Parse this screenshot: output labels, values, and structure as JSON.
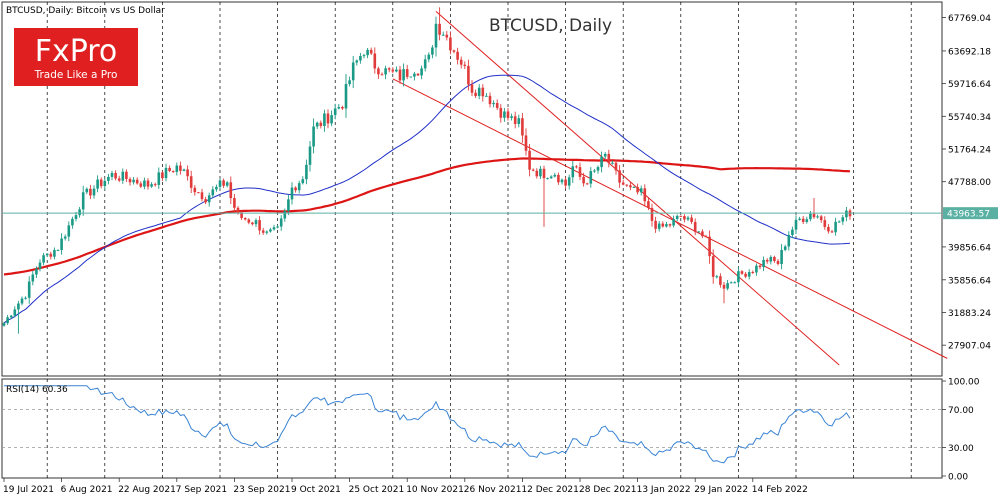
{
  "header": {
    "symbol_label": "BTCUSD, Daily:  Bitcoin vs US Dollar",
    "watermark": "BTCUSD, Daily"
  },
  "logo": {
    "brand": "FxPro",
    "tagline": "Trade Like a Pro",
    "color": "#e02020"
  },
  "colors": {
    "bull": "#1a9a86",
    "bear": "#e03a3a",
    "ma_fast": "#2030c8",
    "ma_slow": "#dd1515",
    "channel": "#e02020",
    "rsi": "#3a84d4",
    "price_line": "#5ab1a3",
    "price_badge": "#5ab1a3"
  },
  "chart_data": [
    {
      "type": "candlestick",
      "title": "BTCUSD, Daily",
      "ylim": [
        24400,
        69400
      ],
      "y_ticks": [
        "67769.04",
        "63692.18",
        "59716.64",
        "55740.34",
        "51764.24",
        "47788.00",
        "43963.57",
        "39856.64",
        "35856.64",
        "31883.24",
        "27907.04"
      ],
      "x_ticks": [
        "19 Jul 2021",
        "6 Aug 2021",
        "22 Aug 2021",
        "7 Sep 2021",
        "23 Sep 2021",
        "9 Oct 2021",
        "25 Oct 2021",
        "10 Nov 2021",
        "26 Nov 2021",
        "12 Dec 2021",
        "28 Dec 2021",
        "13 Jan 2022",
        "29 Jan 2022",
        "14 Feb 2022"
      ],
      "current_price": "43963.57",
      "close_anchors": [
        [
          0,
          30600
        ],
        [
          3,
          32500
        ],
        [
          6,
          34100
        ],
        [
          8,
          36400
        ],
        [
          10,
          38200
        ],
        [
          15,
          39800
        ],
        [
          18,
          42400
        ],
        [
          22,
          45900
        ],
        [
          26,
          47400
        ],
        [
          30,
          48600
        ],
        [
          35,
          48100
        ],
        [
          40,
          47400
        ],
        [
          45,
          48900
        ],
        [
          48,
          49600
        ],
        [
          50,
          48900
        ],
        [
          53,
          46900
        ],
        [
          56,
          45900
        ],
        [
          60,
          47300
        ],
        [
          62,
          47800
        ],
        [
          63,
          45800
        ],
        [
          65,
          43600
        ],
        [
          70,
          42800
        ],
        [
          73,
          41400
        ],
        [
          76,
          41800
        ],
        [
          78,
          43900
        ],
        [
          80,
          47000
        ],
        [
          83,
          48300
        ],
        [
          86,
          54200
        ],
        [
          90,
          55700
        ],
        [
          94,
          57400
        ],
        [
          97,
          61600
        ],
        [
          100,
          63900
        ],
        [
          103,
          62000
        ],
        [
          106,
          61200
        ],
        [
          110,
          60600
        ],
        [
          114,
          61700
        ],
        [
          116,
          61500
        ],
        [
          118,
          62600
        ],
        [
          120,
          67000
        ],
        [
          122,
          66100
        ],
        [
          124,
          64600
        ],
        [
          127,
          62400
        ],
        [
          130,
          59200
        ],
        [
          133,
          58900
        ],
        [
          136,
          57400
        ],
        [
          139,
          55900
        ],
        [
          143,
          54800
        ],
        [
          146,
          49600
        ],
        [
          149,
          48800
        ],
        [
          153,
          48900
        ],
        [
          156,
          47400
        ],
        [
          158,
          49600
        ],
        [
          161,
          47700
        ],
        [
          164,
          48900
        ],
        [
          167,
          50900
        ],
        [
          169,
          49400
        ],
        [
          171,
          47800
        ],
        [
          174,
          46700
        ],
        [
          177,
          46300
        ],
        [
          180,
          43100
        ],
        [
          182,
          42100
        ],
        [
          185,
          42600
        ],
        [
          188,
          43600
        ],
        [
          191,
          42600
        ],
        [
          193,
          41900
        ],
        [
          195,
          40500
        ],
        [
          197,
          36600
        ],
        [
          200,
          35100
        ],
        [
          204,
          36400
        ],
        [
          208,
          37100
        ],
        [
          212,
          38300
        ],
        [
          215,
          37900
        ],
        [
          218,
          41500
        ],
        [
          221,
          43200
        ],
        [
          224,
          43900
        ],
        [
          226,
          43700
        ],
        [
          228,
          42500
        ],
        [
          230,
          42200
        ],
        [
          233,
          43400
        ],
        [
          235,
          44100
        ]
      ],
      "wick_extremes": [
        {
          "day": 4,
          "low": 29300
        },
        {
          "day": 121,
          "high": 69000
        },
        {
          "day": 150,
          "low": 42300
        },
        {
          "day": 200,
          "low": 33000
        },
        {
          "day": 225,
          "high": 45800
        }
      ],
      "series": [
        {
          "kind": "candles"
        },
        {
          "kind": "ma",
          "period": 50
        },
        {
          "kind": "ma",
          "period": 200
        }
      ],
      "channel": [
        {
          "from": [
            120,
            68500
          ],
          "to": [
            232,
            25500
          ]
        },
        {
          "from": [
            108,
            60300
          ],
          "to": [
            262,
            26300
          ]
        }
      ]
    },
    {
      "type": "line",
      "title": "RSI(14) 60.36",
      "ylim": [
        0,
        100
      ],
      "y_ticks": [
        "100.00",
        "70.00",
        "30.00",
        "0.00"
      ],
      "levels": [
        70,
        30
      ],
      "series": [
        {
          "name": "RSI(14)",
          "kind": "rsi",
          "period": 14
        }
      ]
    }
  ]
}
